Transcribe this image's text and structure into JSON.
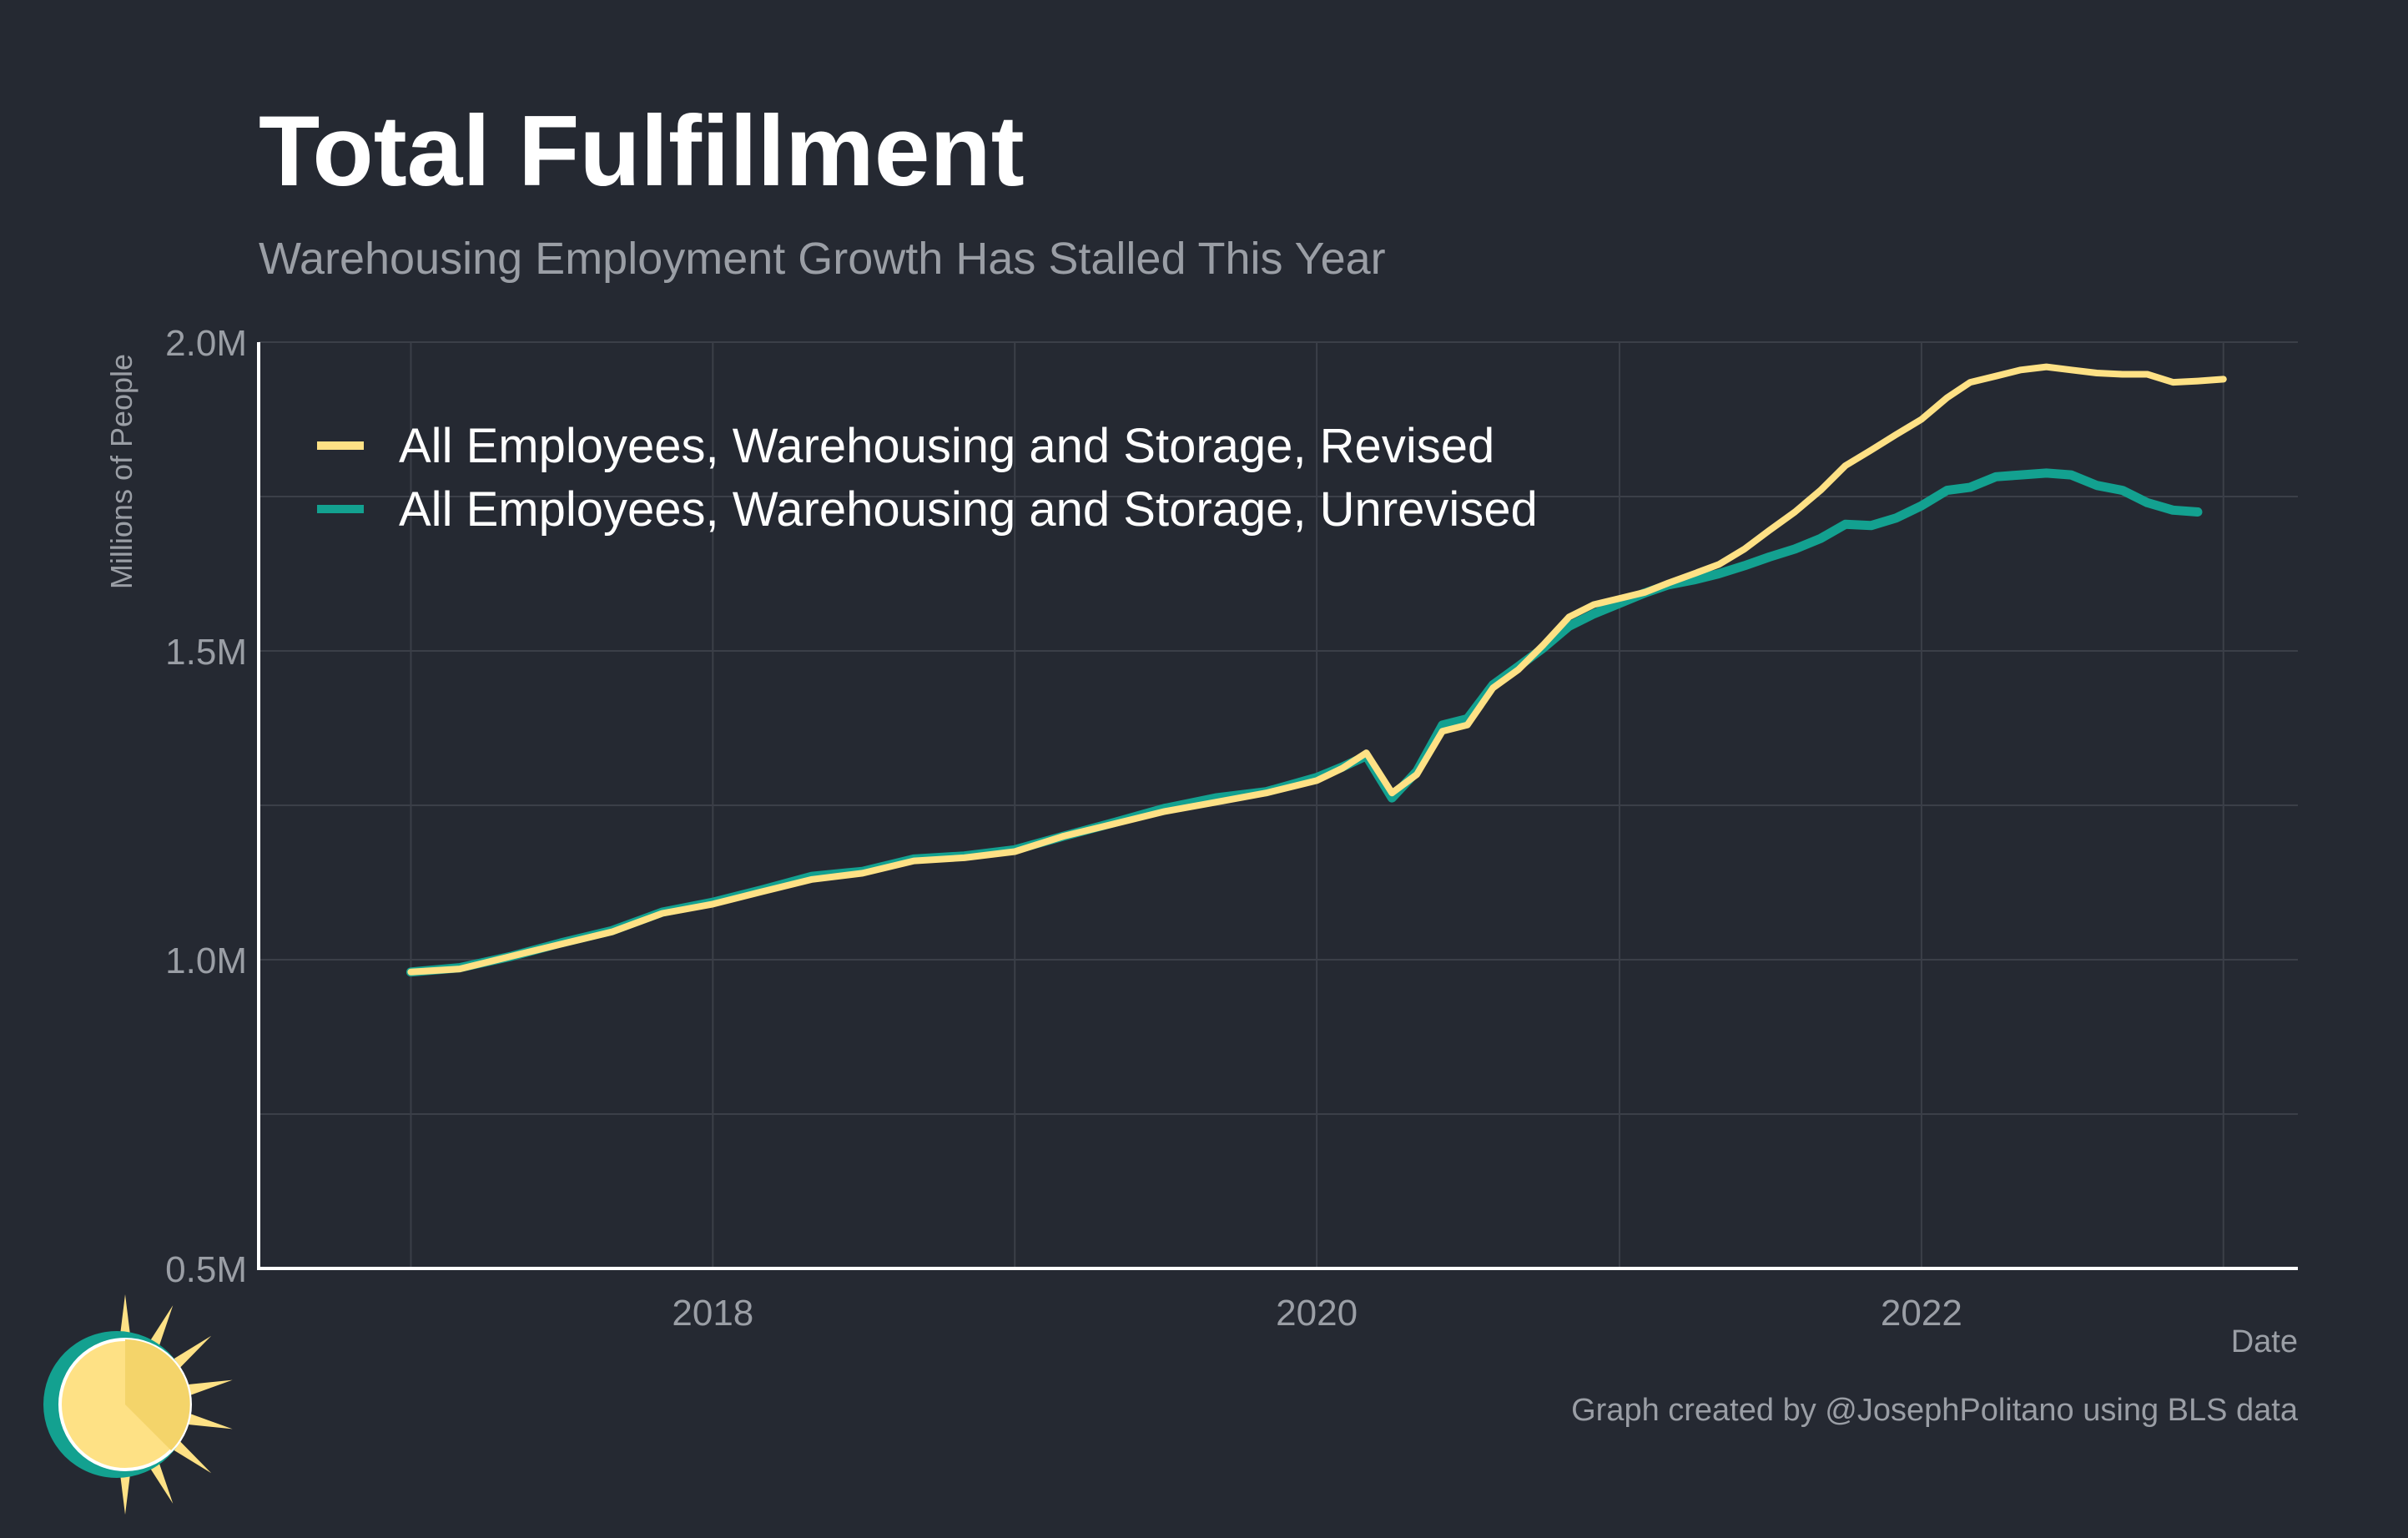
{
  "chart_data": {
    "type": "line",
    "title": "Total Fulfillment",
    "subtitle": "Warehousing Employment Growth Has Stalled This Year",
    "xlabel": "Date",
    "ylabel": "Millions of People",
    "caption": "Graph created by @JosephPolitano using BLS data",
    "xlim": [
      "2016-07-01",
      "2023-04-01"
    ],
    "ylim": [
      0.5,
      2.0
    ],
    "x_ticks": [
      {
        "date": "2018-01-01",
        "label": "2018"
      },
      {
        "date": "2020-01-01",
        "label": "2020"
      },
      {
        "date": "2022-01-01",
        "label": "2022"
      }
    ],
    "y_ticks": [
      {
        "value": 0.5,
        "label": "0.5M"
      },
      {
        "value": 1.0,
        "label": "1.0M"
      },
      {
        "value": 1.5,
        "label": "1.5M"
      },
      {
        "value": 2.0,
        "label": "2.0M"
      }
    ],
    "grid": true,
    "legend_position": "top-left",
    "series": [
      {
        "name": "All Employees, Warehousing and Storage, Revised",
        "color": "#fee185",
        "points": [
          [
            "2017-01-01",
            0.98
          ],
          [
            "2017-03-01",
            0.985
          ],
          [
            "2017-05-01",
            1.005
          ],
          [
            "2017-07-01",
            1.025
          ],
          [
            "2017-09-01",
            1.045
          ],
          [
            "2017-11-01",
            1.075
          ],
          [
            "2018-01-01",
            1.09
          ],
          [
            "2018-03-01",
            1.11
          ],
          [
            "2018-05-01",
            1.13
          ],
          [
            "2018-07-01",
            1.14
          ],
          [
            "2018-09-01",
            1.16
          ],
          [
            "2018-11-01",
            1.165
          ],
          [
            "2019-01-01",
            1.175
          ],
          [
            "2019-03-01",
            1.2
          ],
          [
            "2019-05-01",
            1.22
          ],
          [
            "2019-07-01",
            1.24
          ],
          [
            "2019-09-01",
            1.255
          ],
          [
            "2019-11-01",
            1.27
          ],
          [
            "2020-01-01",
            1.29
          ],
          [
            "2020-02-01",
            1.31
          ],
          [
            "2020-03-01",
            1.335
          ],
          [
            "2020-04-01",
            1.27
          ],
          [
            "2020-05-01",
            1.3
          ],
          [
            "2020-06-01",
            1.37
          ],
          [
            "2020-07-01",
            1.38
          ],
          [
            "2020-08-01",
            1.44
          ],
          [
            "2020-09-01",
            1.47
          ],
          [
            "2020-10-01",
            1.51
          ],
          [
            "2020-11-01",
            1.555
          ],
          [
            "2020-12-01",
            1.575
          ],
          [
            "2021-01-01",
            1.585
          ],
          [
            "2021-02-01",
            1.595
          ],
          [
            "2021-03-01",
            1.61
          ],
          [
            "2021-04-01",
            1.625
          ],
          [
            "2021-05-01",
            1.64
          ],
          [
            "2021-06-01",
            1.665
          ],
          [
            "2021-07-01",
            1.695
          ],
          [
            "2021-08-01",
            1.725
          ],
          [
            "2021-09-01",
            1.76
          ],
          [
            "2021-10-01",
            1.8
          ],
          [
            "2021-11-01",
            1.825
          ],
          [
            "2021-12-01",
            1.85
          ],
          [
            "2022-01-01",
            1.875
          ],
          [
            "2022-02-01",
            1.91
          ],
          [
            "2022-03-01",
            1.935
          ],
          [
            "2022-04-01",
            1.945
          ],
          [
            "2022-05-01",
            1.955
          ],
          [
            "2022-06-01",
            1.96
          ],
          [
            "2022-07-01",
            1.955
          ],
          [
            "2022-08-01",
            1.95
          ],
          [
            "2022-09-01",
            1.948
          ],
          [
            "2022-10-01",
            1.948
          ],
          [
            "2022-11-01",
            1.935
          ],
          [
            "2022-12-01",
            1.937
          ],
          [
            "2023-01-01",
            1.94
          ]
        ]
      },
      {
        "name": "All Employees, Warehousing and Storage, Unrevised",
        "color": "#13a190",
        "points": [
          [
            "2017-01-01",
            0.98
          ],
          [
            "2017-03-01",
            0.987
          ],
          [
            "2017-05-01",
            1.005
          ],
          [
            "2017-07-01",
            1.027
          ],
          [
            "2017-09-01",
            1.047
          ],
          [
            "2017-11-01",
            1.077
          ],
          [
            "2018-01-01",
            1.093
          ],
          [
            "2018-03-01",
            1.113
          ],
          [
            "2018-05-01",
            1.135
          ],
          [
            "2018-07-01",
            1.143
          ],
          [
            "2018-09-01",
            1.163
          ],
          [
            "2018-11-01",
            1.168
          ],
          [
            "2019-01-01",
            1.178
          ],
          [
            "2019-03-01",
            1.2
          ],
          [
            "2019-05-01",
            1.222
          ],
          [
            "2019-07-01",
            1.245
          ],
          [
            "2019-09-01",
            1.262
          ],
          [
            "2019-11-01",
            1.272
          ],
          [
            "2020-01-01",
            1.295
          ],
          [
            "2020-02-01",
            1.312
          ],
          [
            "2020-03-01",
            1.33
          ],
          [
            "2020-04-01",
            1.262
          ],
          [
            "2020-05-01",
            1.305
          ],
          [
            "2020-06-01",
            1.38
          ],
          [
            "2020-07-01",
            1.39
          ],
          [
            "2020-08-01",
            1.445
          ],
          [
            "2020-09-01",
            1.475
          ],
          [
            "2020-10-01",
            1.505
          ],
          [
            "2020-11-01",
            1.54
          ],
          [
            "2020-12-01",
            1.56
          ],
          [
            "2021-01-01",
            1.577
          ],
          [
            "2021-02-01",
            1.594
          ],
          [
            "2021-03-01",
            1.607
          ],
          [
            "2021-04-01",
            1.615
          ],
          [
            "2021-05-01",
            1.625
          ],
          [
            "2021-06-01",
            1.638
          ],
          [
            "2021-07-01",
            1.652
          ],
          [
            "2021-08-01",
            1.665
          ],
          [
            "2021-09-01",
            1.682
          ],
          [
            "2021-10-01",
            1.705
          ],
          [
            "2021-11-01",
            1.703
          ],
          [
            "2021-12-01",
            1.715
          ],
          [
            "2022-01-01",
            1.735
          ],
          [
            "2022-02-01",
            1.76
          ],
          [
            "2022-03-01",
            1.765
          ],
          [
            "2022-04-01",
            1.782
          ],
          [
            "2022-05-01",
            1.785
          ],
          [
            "2022-06-01",
            1.788
          ],
          [
            "2022-07-01",
            1.785
          ],
          [
            "2022-08-01",
            1.768
          ],
          [
            "2022-09-01",
            1.76
          ],
          [
            "2022-10-01",
            1.74
          ],
          [
            "2022-11-01",
            1.728
          ],
          [
            "2022-12-01",
            1.725
          ]
        ]
      }
    ]
  },
  "colors": {
    "background": "#252932",
    "grid": "#3b3f48",
    "axis": "#ffffff",
    "title": "#ffffff",
    "muted_text": "#9a9ea5",
    "logo_ring": "#13a190",
    "logo_sun": "#fee185"
  },
  "logo": {
    "icon": "sun-logo-icon"
  }
}
